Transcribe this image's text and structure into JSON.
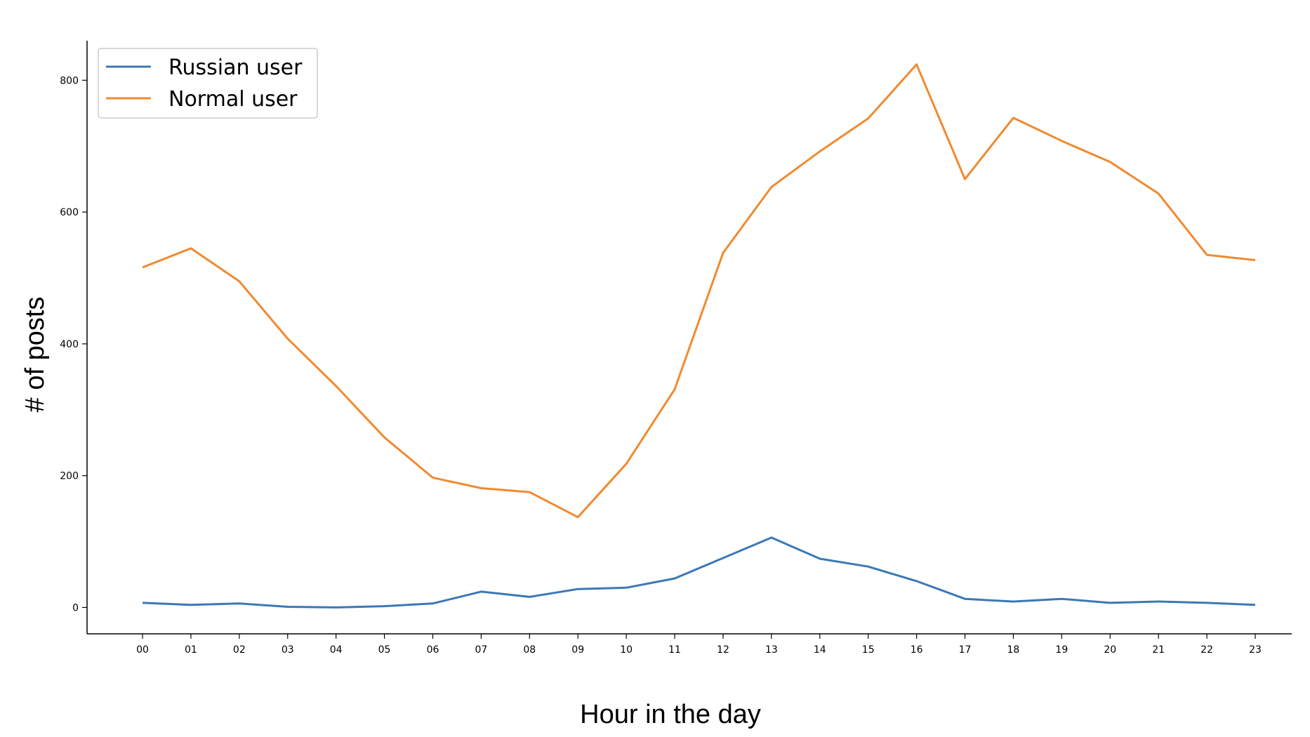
{
  "chart_data": {
    "type": "line",
    "x": [
      "00",
      "01",
      "02",
      "03",
      "04",
      "05",
      "06",
      "07",
      "08",
      "09",
      "10",
      "11",
      "12",
      "13",
      "14",
      "15",
      "16",
      "17",
      "18",
      "19",
      "20",
      "21",
      "22",
      "23"
    ],
    "xlabel": "Hour in the day",
    "ylabel": "# of posts",
    "ylim": [
      -40,
      860
    ],
    "yticks": [
      0,
      200,
      400,
      600,
      800
    ],
    "grid": false,
    "legend_position": "top-left",
    "series": [
      {
        "name": "Russian user",
        "color": "#3b78b6",
        "values": [
          7,
          4,
          6,
          1,
          0,
          2,
          6,
          24,
          16,
          28,
          30,
          44,
          75,
          106,
          74,
          62,
          40,
          13,
          9,
          13,
          7,
          9,
          7,
          4
        ]
      },
      {
        "name": "Normal user",
        "color": "#f08a30",
        "values": [
          516,
          545,
          495,
          408,
          336,
          258,
          197,
          181,
          175,
          137,
          218,
          331,
          538,
          638,
          692,
          742,
          824,
          650,
          743,
          708,
          676,
          628,
          535,
          527
        ]
      }
    ]
  }
}
